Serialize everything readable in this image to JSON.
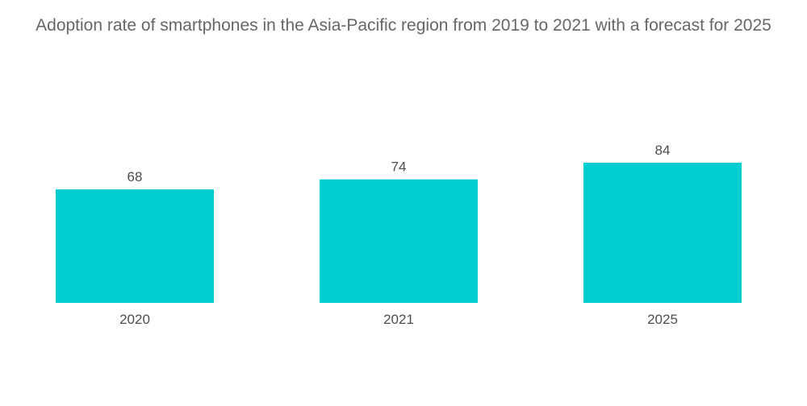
{
  "chart_data": {
    "type": "bar",
    "title": "Adoption rate of smartphones in the Asia-Pacific region from 2019 to 2021 with a forecast for 2025",
    "categories": [
      "2020",
      "2021",
      "2025"
    ],
    "values": [
      68,
      74,
      84
    ],
    "xlabel": "",
    "ylabel": "",
    "ylim": [
      0,
      84
    ],
    "grid": false,
    "bar_color": "#00CED1",
    "data_labels": true
  }
}
